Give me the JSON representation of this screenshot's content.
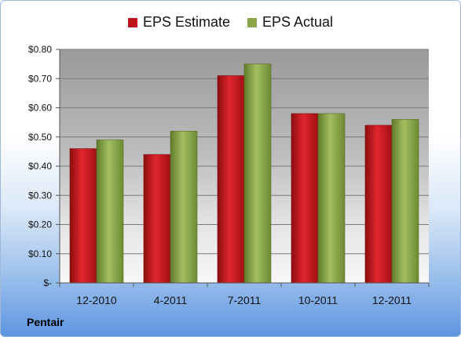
{
  "chart_data": {
    "type": "bar",
    "categories": [
      "12-2010",
      "4-2011",
      "7-2011",
      "10-2011",
      "12-2011"
    ],
    "series": [
      {
        "name": "EPS Estimate",
        "values": [
          0.46,
          0.44,
          0.71,
          0.58,
          0.54
        ],
        "color": "#c0141a"
      },
      {
        "name": "EPS Actual",
        "values": [
          0.49,
          0.52,
          0.75,
          0.58,
          0.56
        ],
        "color": "#8aa64a"
      }
    ],
    "ylim": [
      0,
      0.8
    ],
    "yticks": [
      0,
      0.1,
      0.2,
      0.3,
      0.4,
      0.5,
      0.6,
      0.7,
      0.8
    ],
    "ytick_labels": [
      "$-",
      "$0.10",
      "$0.20",
      "$0.30",
      "$0.40",
      "$0.50",
      "$0.60",
      "$0.70",
      "$0.80"
    ],
    "grid": true,
    "legend_position": "top-center"
  },
  "footer": {
    "company": "Pentair"
  }
}
